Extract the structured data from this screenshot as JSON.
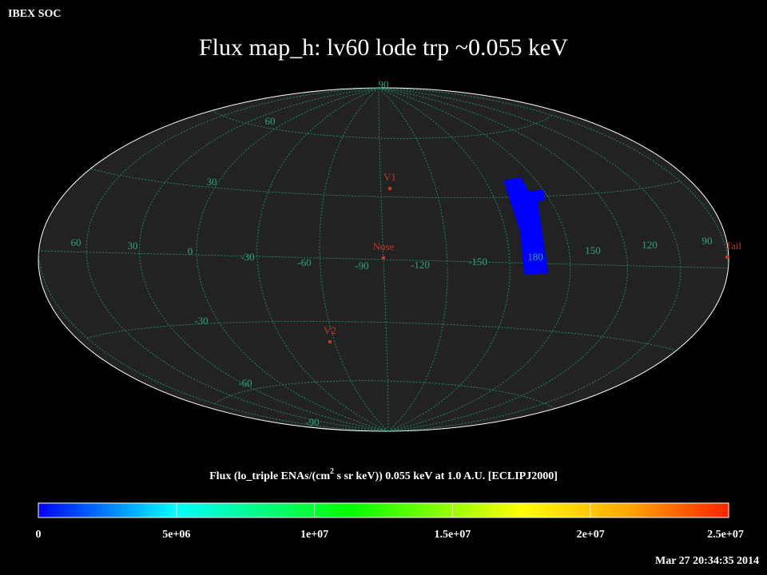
{
  "header": {
    "org": "IBEX SOC",
    "title": "Flux   map_h: lv60 lode trp ~0.055 keV"
  },
  "map": {
    "lat_labels": [
      "90",
      "60",
      "30",
      "-30",
      "-60",
      "-90"
    ],
    "lon_labels": [
      "60",
      "30",
      "0",
      "-30",
      "-60",
      "-90",
      "-120",
      "-150",
      "180",
      "150",
      "120",
      "90"
    ],
    "markers": [
      {
        "label": "V1"
      },
      {
        "label": "Nose"
      },
      {
        "label": "V2"
      },
      {
        "label": "Tail"
      }
    ]
  },
  "colorbar": {
    "title_parts": [
      "Flux (lo_triple ENAs/(cm",
      "2",
      " s sr keV))  0.055 keV at 1.0 A.U. [ECLIPJ2000]"
    ],
    "range": [
      0,
      25000000
    ],
    "ticks": [
      0,
      {
        "value": 5000000,
        "label": "5e+06"
      },
      {
        "value": 10000000,
        "label": "1e+07"
      },
      {
        "value": 15000000,
        "label": "1.5e+07"
      },
      {
        "value": 20000000,
        "label": "2e+07"
      },
      {
        "value": 25000000,
        "label": "2.5e+07"
      }
    ]
  },
  "footer": {
    "timestamp": "Mar 27 20:34:35 2014"
  }
}
